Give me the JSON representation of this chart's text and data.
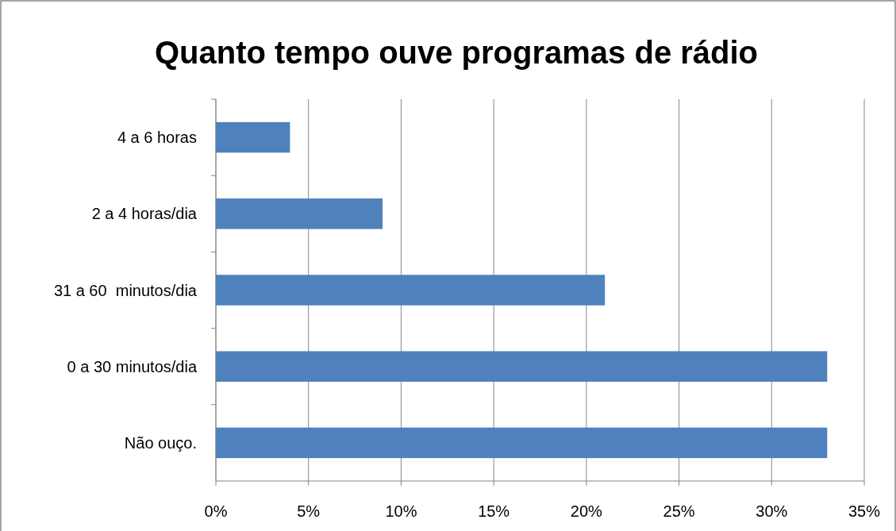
{
  "chart_data": {
    "type": "bar",
    "orientation": "horizontal",
    "title": "Quanto tempo ouve programas de rádio",
    "categories": [
      "4 a 6 horas",
      "2 a 4 horas/dia",
      "31 a 60  minutos/dia",
      "0 a 30 minutos/dia",
      "Não ouço."
    ],
    "values": [
      4,
      9,
      21,
      33,
      33
    ],
    "color": "#4f81bd",
    "xlim": [
      0,
      35
    ],
    "xticks": [
      {
        "value": 0,
        "label": "0%"
      },
      {
        "value": 5,
        "label": "5%"
      },
      {
        "value": 10,
        "label": "10%"
      },
      {
        "value": 15,
        "label": "15%"
      },
      {
        "value": 20,
        "label": "20%"
      },
      {
        "value": 25,
        "label": "25%"
      },
      {
        "value": 30,
        "label": "30%"
      },
      {
        "value": 35,
        "label": "35%"
      }
    ],
    "grid": "x"
  }
}
